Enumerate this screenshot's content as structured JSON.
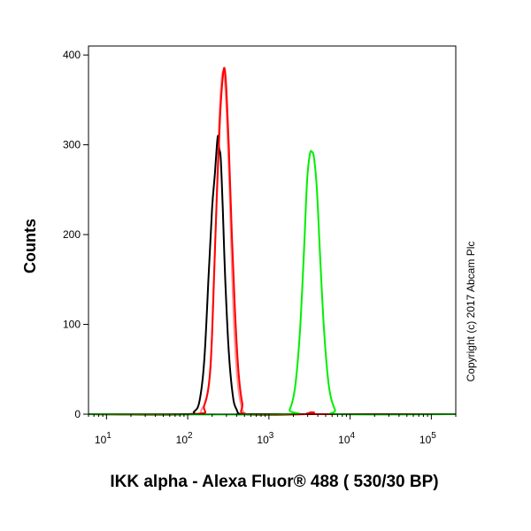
{
  "chart_data": {
    "type": "line",
    "title": "",
    "xlabel": "IKK alpha - Alexa Fluor® 488 ( 530/30 BP)",
    "ylabel": "Counts",
    "x_scale": "log",
    "xlim": [
      6,
      200000
    ],
    "ylim": [
      0,
      410
    ],
    "x_ticks": [
      {
        "value": 10,
        "base": "10",
        "exp": "1"
      },
      {
        "value": 100,
        "base": "10",
        "exp": "2"
      },
      {
        "value": 1000,
        "base": "10",
        "exp": "3"
      },
      {
        "value": 10000,
        "base": "10",
        "exp": "4"
      },
      {
        "value": 100000,
        "base": "10",
        "exp": "5"
      }
    ],
    "y_ticks": [
      {
        "value": 0,
        "label": "0"
      },
      {
        "value": 100,
        "label": "100"
      },
      {
        "value": 200,
        "label": "200"
      },
      {
        "value": 300,
        "label": "300"
      },
      {
        "value": 400,
        "label": "400"
      }
    ],
    "annotations": [
      "Copyright (c) 2017 Abcam Plc"
    ],
    "series": [
      {
        "color": "#ff8a8a",
        "points": [
          [
            6,
            0
          ],
          [
            100,
            0
          ],
          [
            150,
            6
          ],
          [
            180,
            30
          ],
          [
            200,
            90
          ],
          [
            220,
            200
          ],
          [
            240,
            310
          ],
          [
            260,
            370
          ],
          [
            280,
            380
          ],
          [
            300,
            340
          ],
          [
            330,
            240
          ],
          [
            360,
            130
          ],
          [
            400,
            50
          ],
          [
            450,
            12
          ],
          [
            520,
            0
          ],
          [
            700,
            0
          ],
          [
            2000,
            0
          ],
          [
            200000,
            0
          ]
        ]
      },
      {
        "color": "#000000",
        "points": [
          [
            6,
            0
          ],
          [
            90,
            0
          ],
          [
            120,
            3
          ],
          [
            140,
            15
          ],
          [
            160,
            60
          ],
          [
            180,
            150
          ],
          [
            200,
            230
          ],
          [
            215,
            265
          ],
          [
            225,
            290
          ],
          [
            235,
            310
          ],
          [
            245,
            295
          ],
          [
            255,
            285
          ],
          [
            270,
            230
          ],
          [
            290,
            150
          ],
          [
            320,
            70
          ],
          [
            360,
            20
          ],
          [
            400,
            5
          ],
          [
            450,
            0
          ],
          [
            700,
            0
          ],
          [
            200000,
            0
          ]
        ]
      },
      {
        "color": "#ff0000",
        "points": [
          [
            6,
            0
          ],
          [
            120,
            0
          ],
          [
            160,
            10
          ],
          [
            190,
            50
          ],
          [
            210,
            150
          ],
          [
            230,
            250
          ],
          [
            250,
            330
          ],
          [
            270,
            375
          ],
          [
            285,
            385
          ],
          [
            300,
            360
          ],
          [
            320,
            300
          ],
          [
            350,
            200
          ],
          [
            380,
            120
          ],
          [
            420,
            50
          ],
          [
            470,
            12
          ],
          [
            530,
            0
          ],
          [
            2800,
            0
          ],
          [
            3200,
            2
          ],
          [
            3600,
            2
          ],
          [
            4000,
            0
          ],
          [
            200000,
            0
          ]
        ]
      },
      {
        "color": "#00ee00",
        "points": [
          [
            6,
            0
          ],
          [
            1500,
            0
          ],
          [
            1800,
            5
          ],
          [
            2100,
            30
          ],
          [
            2400,
            90
          ],
          [
            2700,
            180
          ],
          [
            2950,
            260
          ],
          [
            3200,
            290
          ],
          [
            3400,
            292
          ],
          [
            3600,
            285
          ],
          [
            3900,
            250
          ],
          [
            4300,
            170
          ],
          [
            4800,
            90
          ],
          [
            5500,
            30
          ],
          [
            6500,
            5
          ],
          [
            7500,
            0
          ],
          [
            200000,
            0
          ]
        ]
      }
    ]
  }
}
